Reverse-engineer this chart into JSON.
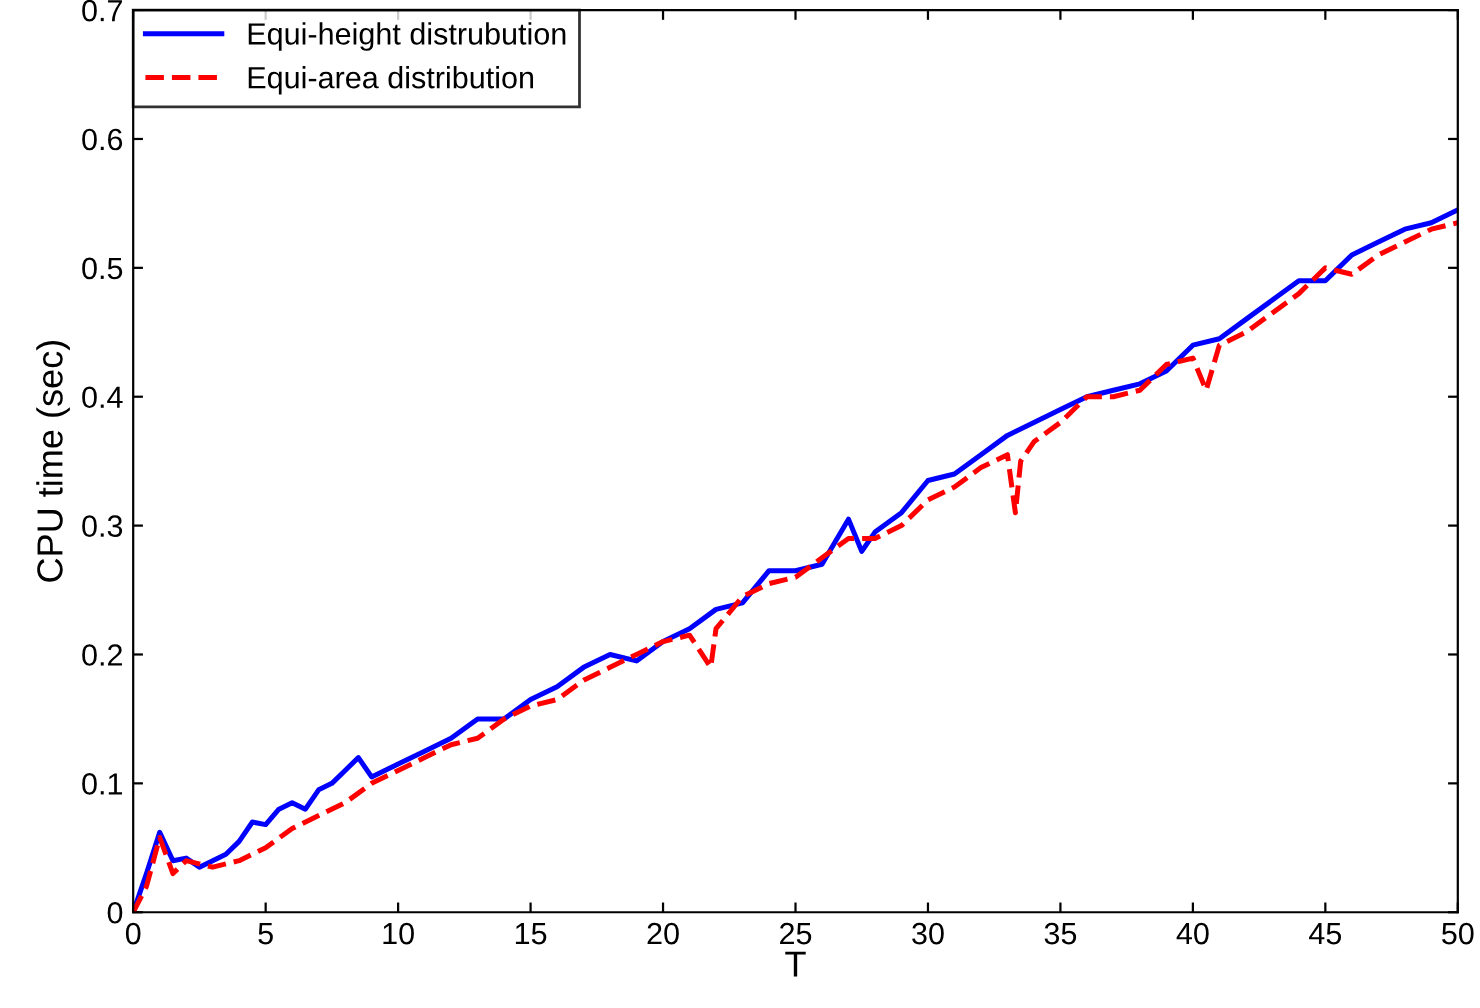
{
  "chart_data": {
    "type": "line",
    "xlabel": "T",
    "ylabel": "CPU time (sec)",
    "xlim": [
      0,
      50
    ],
    "ylim": [
      0,
      0.7
    ],
    "xticks": [
      0,
      5,
      10,
      15,
      20,
      25,
      30,
      35,
      40,
      45,
      50
    ],
    "yticks": [
      0,
      0.1,
      0.2,
      0.3,
      0.4,
      0.5,
      0.6,
      0.7
    ],
    "grid": false,
    "legend": "top left",
    "marker": "none",
    "series": [
      {
        "name": "Equi-height distrubution",
        "color": "#0000ff",
        "line_style": "solid",
        "x": [
          0,
          0.5,
          1,
          1.5,
          2,
          2.5,
          3,
          3.5,
          4,
          4.5,
          5,
          5.5,
          6,
          6.5,
          7,
          7.5,
          8,
          8.5,
          9,
          9.5,
          10,
          11,
          12,
          13,
          14,
          15,
          16,
          17,
          18,
          19,
          20,
          21,
          22,
          23,
          24,
          25,
          26,
          27,
          27.5,
          28,
          29,
          30,
          31,
          32,
          33,
          34,
          35,
          36,
          37,
          38,
          39,
          40,
          41,
          42,
          43,
          44,
          45,
          46,
          47,
          48,
          49,
          50
        ],
        "values": [
          0,
          0.03,
          0.062,
          0.04,
          0.042,
          0.035,
          0.04,
          0.045,
          0.055,
          0.07,
          0.068,
          0.08,
          0.085,
          0.08,
          0.095,
          0.1,
          0.11,
          0.12,
          0.105,
          0.11,
          0.115,
          0.125,
          0.135,
          0.15,
          0.15,
          0.165,
          0.175,
          0.19,
          0.2,
          0.195,
          0.21,
          0.22,
          0.235,
          0.24,
          0.265,
          0.265,
          0.27,
          0.305,
          0.28,
          0.295,
          0.31,
          0.335,
          0.34,
          0.355,
          0.37,
          0.38,
          0.39,
          0.4,
          0.405,
          0.41,
          0.42,
          0.44,
          0.445,
          0.46,
          0.475,
          0.49,
          0.49,
          0.51,
          0.52,
          0.53,
          0.535,
          0.545
        ]
      },
      {
        "name": "Equi-area distribution",
        "color": "#ff0000",
        "line_style": "dashed",
        "x": [
          0,
          0.5,
          1,
          1.5,
          2,
          3,
          4,
          5,
          6,
          7,
          8,
          9,
          10,
          11,
          12,
          13,
          14,
          15,
          16,
          17,
          18,
          19,
          20,
          21,
          21.8,
          22,
          23,
          24,
          25,
          26,
          27,
          28,
          29,
          30,
          31,
          32,
          33,
          33.3,
          33.5,
          34,
          35,
          36,
          37,
          38,
          39,
          40,
          40.5,
          41,
          42,
          43,
          44,
          45,
          46,
          47,
          48,
          49,
          50
        ],
        "values": [
          0,
          0.02,
          0.058,
          0.03,
          0.04,
          0.035,
          0.04,
          0.05,
          0.065,
          0.075,
          0.085,
          0.1,
          0.11,
          0.12,
          0.13,
          0.135,
          0.15,
          0.16,
          0.165,
          0.18,
          0.19,
          0.2,
          0.21,
          0.215,
          0.19,
          0.22,
          0.245,
          0.255,
          0.26,
          0.275,
          0.29,
          0.29,
          0.3,
          0.32,
          0.33,
          0.345,
          0.355,
          0.31,
          0.35,
          0.365,
          0.38,
          0.4,
          0.4,
          0.405,
          0.425,
          0.43,
          0.405,
          0.44,
          0.45,
          0.465,
          0.48,
          0.5,
          0.495,
          0.51,
          0.52,
          0.53,
          0.535
        ]
      }
    ]
  }
}
